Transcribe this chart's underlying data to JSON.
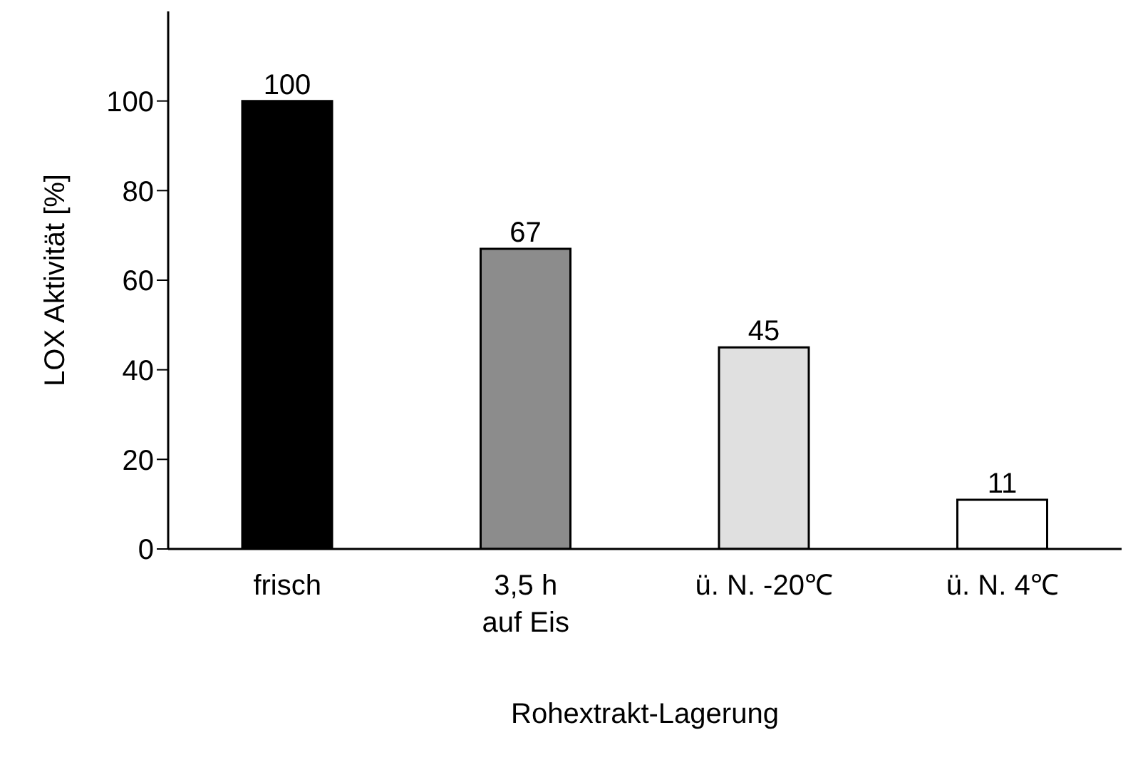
{
  "chart_data": {
    "type": "bar",
    "categories": [
      "frisch",
      "3,5 h\nauf Eis",
      "ü. N. -20℃",
      "ü. N. 4℃"
    ],
    "values": [
      100,
      67,
      45,
      11
    ],
    "colors": [
      "#000000",
      "#8c8c8c",
      "#e0e0e0",
      "#ffffff"
    ],
    "xlabel": "Rohextrakt-Lagerung",
    "ylabel": "LOX Aktivität [%]",
    "ylim": [
      0,
      120
    ],
    "yticks": [
      0,
      20,
      40,
      60,
      80,
      100
    ],
    "data_labels": true,
    "grid": false,
    "legend": false
  }
}
